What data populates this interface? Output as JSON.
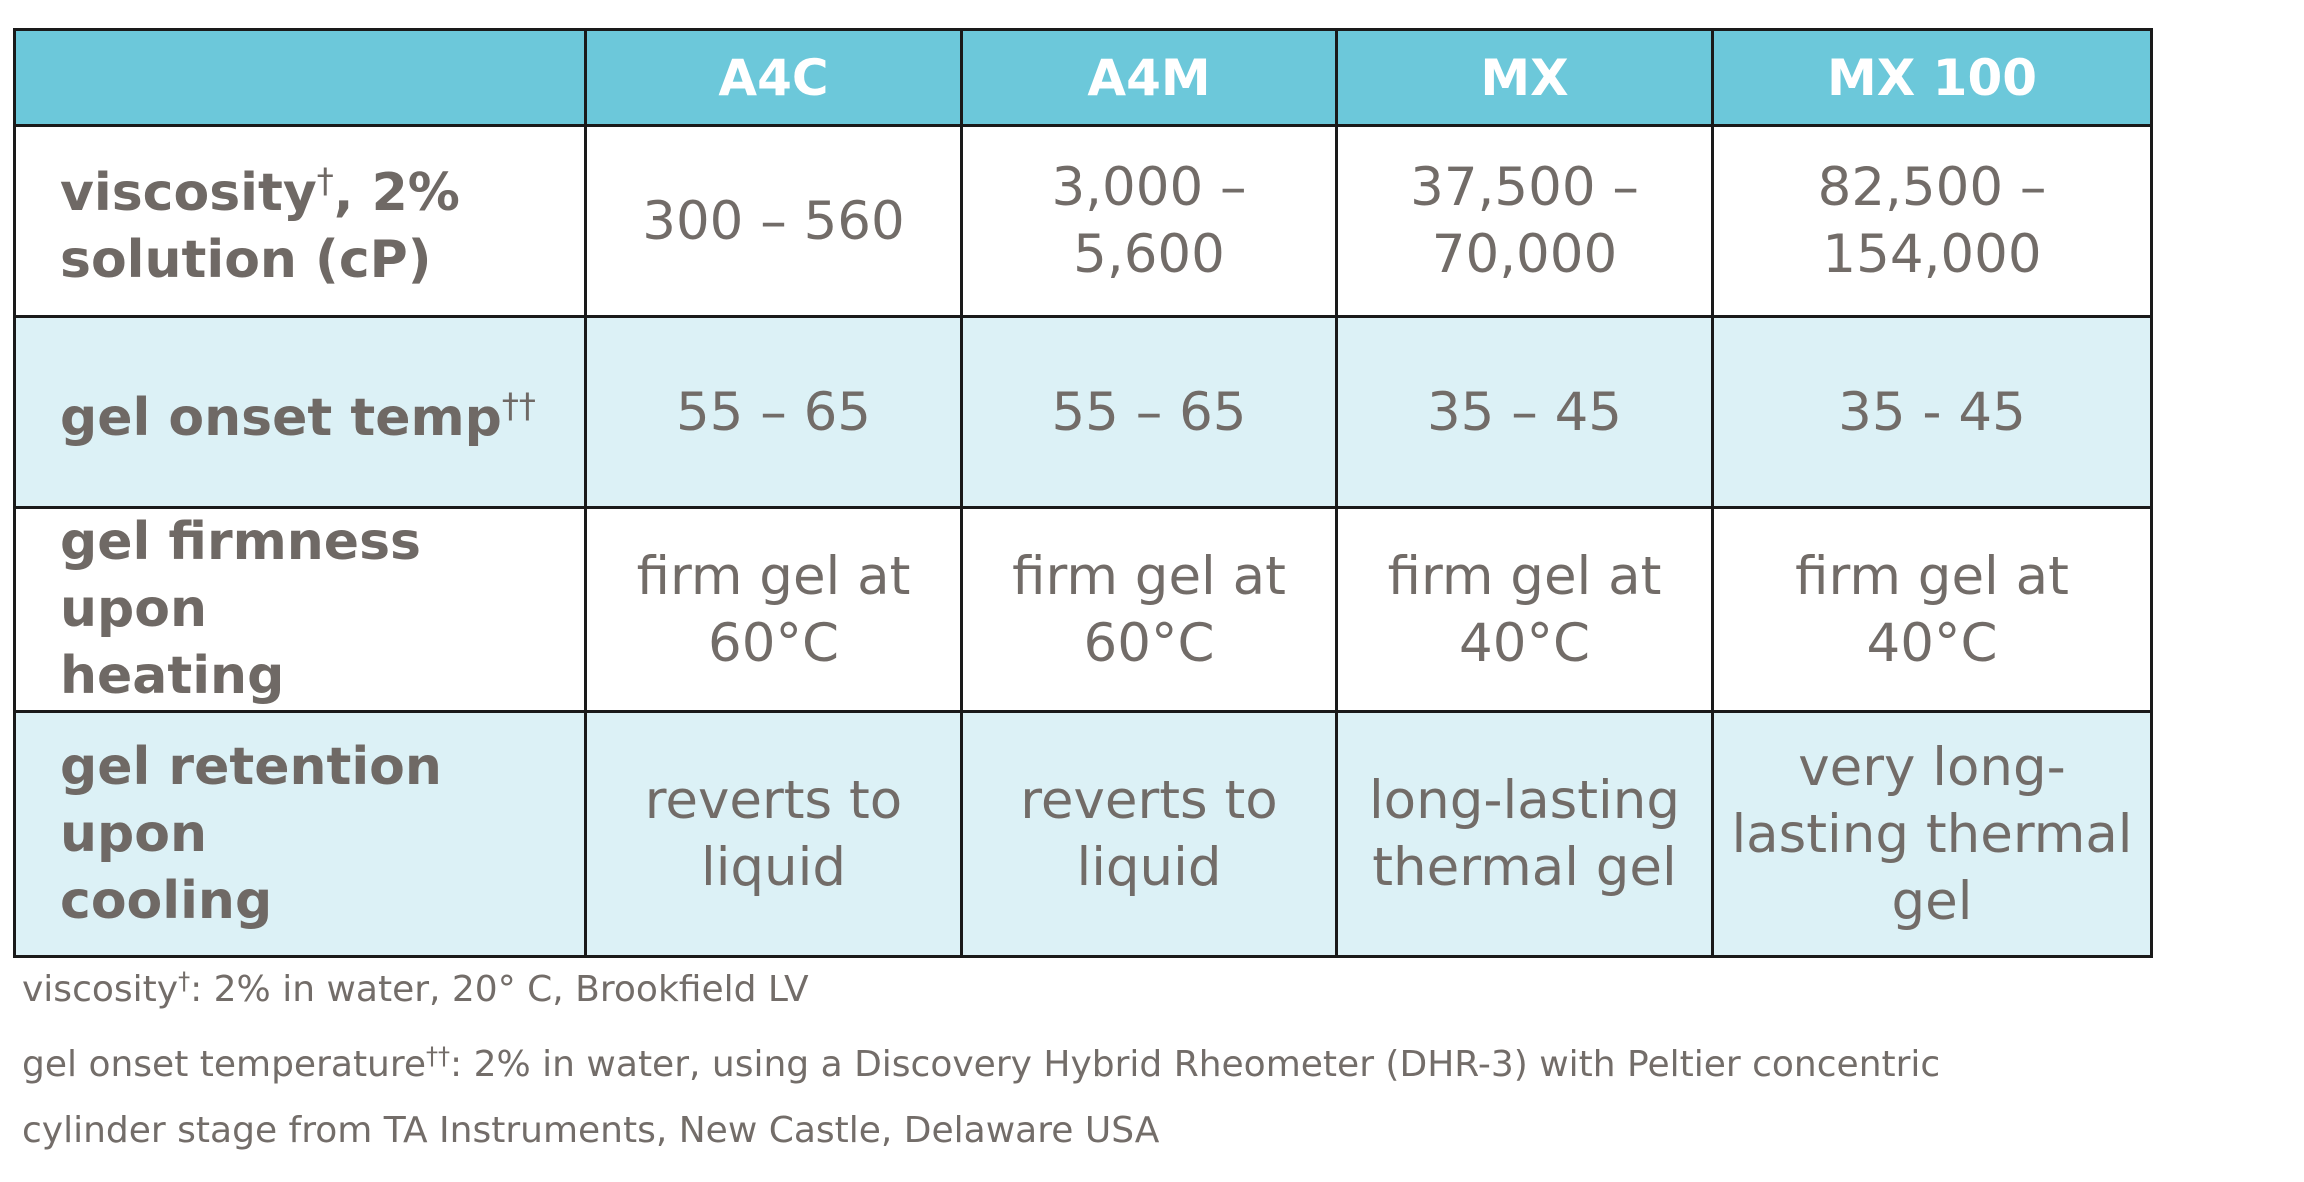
{
  "table": {
    "headers": [
      "",
      "A4C",
      "A4M",
      "MX",
      "MX 100"
    ],
    "rows": [
      {
        "label": "viscosity",
        "label_mark": "†",
        "label_rest": ", 2%",
        "label_line2": "solution (cP)",
        "values": [
          [
            "300 – 560"
          ],
          [
            "3,000 – 5,600"
          ],
          [
            "37,500 –",
            "70,000"
          ],
          [
            "82,500 –",
            "154,000"
          ]
        ]
      },
      {
        "label": "gel onset temp",
        "label_mark": "††",
        "values": [
          [
            "55 – 65"
          ],
          [
            "55 – 65"
          ],
          [
            "35 – 45"
          ],
          [
            "35 - 45"
          ]
        ]
      },
      {
        "label": "gel firmness upon",
        "label_line2": "heating",
        "values": [
          [
            "firm gel at",
            "60°C"
          ],
          [
            "firm gel at",
            "60°C"
          ],
          [
            "firm gel at",
            "40°C"
          ],
          [
            "firm gel at",
            "40°C"
          ]
        ]
      },
      {
        "label": "gel retention upon",
        "label_line2": "cooling",
        "values": [
          [
            "reverts to",
            "liquid"
          ],
          [
            "reverts to",
            "liquid"
          ],
          [
            "long-lasting",
            "thermal gel"
          ],
          [
            "very long-",
            "lasting thermal",
            "gel"
          ]
        ]
      }
    ]
  },
  "footnotes": {
    "note1_term": "viscosity",
    "note1_mark": "†",
    "note1_text": ": 2% in water, 20° C, Brookfield LV",
    "note2_term": "gel onset temperature",
    "note2_mark": "††",
    "note2_text": ": 2% in water, using a Discovery Hybrid Rheometer (DHR-3) with Peltier concentric",
    "note2_line2": "cylinder stage from TA Instruments, New Castle, Delaware USA"
  },
  "colors": {
    "header_bg": "#6cc8da",
    "tint_bg": "#dcf1f6",
    "text": "#726c68",
    "border": "#1a1a1a"
  }
}
